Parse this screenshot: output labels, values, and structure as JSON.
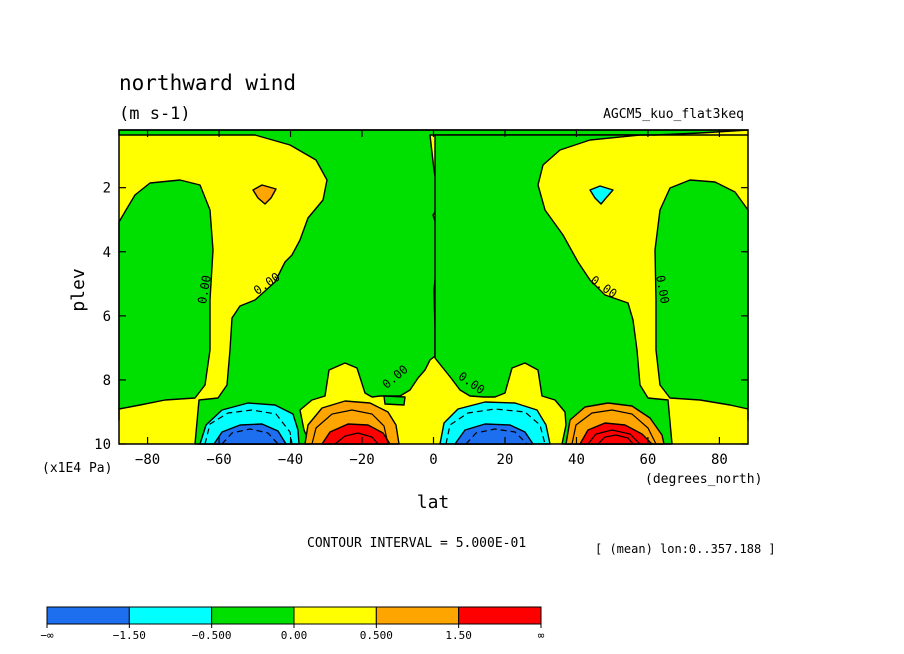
{
  "header": {
    "title": "northward wind",
    "units": "(m s-1)",
    "dataset": "AGCM5_kuo_flat3keq"
  },
  "footer": {
    "contour_interval": "CONTOUR INTERVAL = 5.000E-01",
    "mean_note": "[ (mean) lon:0..357.188 ]"
  },
  "chart_data": {
    "type": "contour",
    "title": "northward wind",
    "units": "(m s-1)",
    "xlabel": "lat",
    "x_unit_label": "(degrees_north)",
    "ylabel": "plev",
    "y_unit_label": "(x1E4 Pa)",
    "xlim": [
      -88,
      88
    ],
    "ylim": [
      0.2,
      10
    ],
    "y_inverted": true,
    "x_ticks": [
      -80,
      -60,
      -40,
      -20,
      0,
      20,
      40,
      60,
      80
    ],
    "x_tick_labels": [
      "−80",
      "−60",
      "−40",
      "−20",
      "0",
      "20",
      "40",
      "60",
      "80"
    ],
    "y_ticks": [
      2,
      4,
      6,
      8,
      10
    ],
    "y_tick_labels": [
      "2",
      "4",
      "6",
      "8",
      "10"
    ],
    "contour_interval": 0.5,
    "contour_labels": [
      {
        "text": "0.00",
        "lat": -63,
        "plev": 5.2,
        "rotation": -80
      },
      {
        "text": "0.00",
        "lat": -46,
        "plev": 5.1,
        "rotation": -35
      },
      {
        "text": "0.00",
        "lat": -10,
        "plev": 8.0,
        "rotation": -40
      },
      {
        "text": "0.00",
        "lat": 10,
        "plev": 8.2,
        "rotation": 35
      },
      {
        "text": "0.00",
        "lat": 47,
        "plev": 5.2,
        "rotation": 35
      },
      {
        "text": "0.00",
        "lat": 63,
        "plev": 5.2,
        "rotation": 80
      }
    ],
    "extrema": [
      {
        "lat": -50,
        "plev": 9.9,
        "sign": "negative",
        "min_level": "-1.50"
      },
      {
        "lat": -20,
        "plev": 9.9,
        "sign": "positive",
        "max_level": "1.50"
      },
      {
        "lat": 20,
        "plev": 9.9,
        "sign": "negative",
        "min_level": "-1.50"
      },
      {
        "lat": 50,
        "plev": 9.9,
        "sign": "positive",
        "max_level": "1.50"
      }
    ],
    "colorbar": {
      "labels": [
        "−∞",
        "−1.50",
        "−0.500",
        "0.00",
        "0.500",
        "1.50",
        "∞"
      ],
      "colors": [
        "#1e6ef0",
        "#00ffff",
        "#00e000",
        "#ffff00",
        "#ffa500",
        "#ff0000"
      ]
    }
  }
}
